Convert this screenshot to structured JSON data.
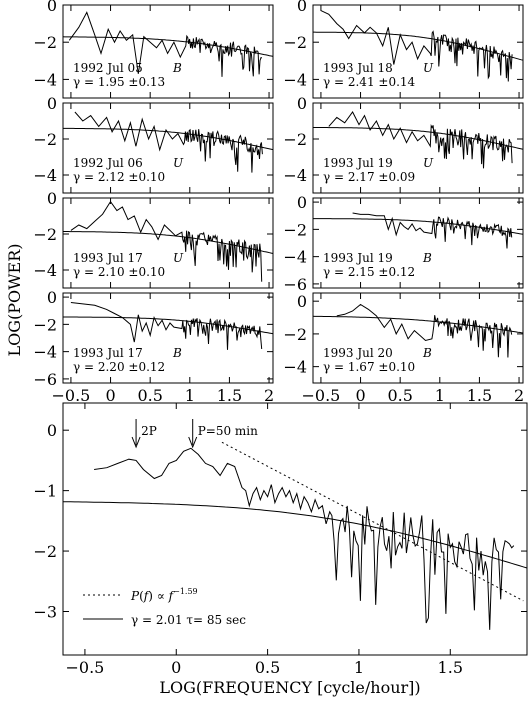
{
  "ylabel": "LOG(POWER)",
  "xlabel": "LOG(FREQUENCY [cycle/hour])",
  "chart_data": [
    {
      "type": "line",
      "id": "p1",
      "line1": "1992 Jul 05",
      "band": "B",
      "gamma": "γ = 1.95 ±0.13",
      "ylim": [
        -5,
        0
      ],
      "yticks": [
        0,
        -2,
        -4
      ],
      "xlim": [
        -0.6,
        2.05
      ],
      "model": {
        "level": -1.7,
        "knee": 1.0,
        "slope": 1.95
      },
      "series": [
        {
          "name": "power",
          "x": [
            -0.52,
            -0.4,
            -0.3,
            -0.2,
            -0.12,
            -0.03,
            0.05,
            0.12,
            0.2,
            0.28,
            0.35,
            0.42,
            0.5,
            0.58,
            0.65,
            0.72,
            0.8,
            0.88,
            0.95
          ],
          "y": [
            -1.9,
            -1.2,
            -0.4,
            -1.6,
            -2.6,
            -1.3,
            -2.0,
            -1.4,
            -1.9,
            -1.6,
            -3.7,
            -1.7,
            -2.0,
            -2.3,
            -1.9,
            -2.6,
            -2.0,
            -2.8,
            -2.2
          ]
        }
      ]
    },
    {
      "type": "line",
      "id": "p2",
      "line1": "1992 Jul 06",
      "band": "U",
      "gamma": "γ = 2.12 ±0.10",
      "ylim": [
        -5,
        0
      ],
      "yticks": [
        0,
        -2,
        -4
      ],
      "xlim": [
        -0.6,
        2.05
      ],
      "model": {
        "level": -1.4,
        "knee": 0.95,
        "slope": 2.12
      },
      "series": [
        {
          "name": "power",
          "x": [
            -0.45,
            -0.35,
            -0.25,
            -0.15,
            -0.05,
            0.02,
            0.1,
            0.18,
            0.25,
            0.32,
            0.4,
            0.48,
            0.55,
            0.62,
            0.7,
            0.78,
            0.85,
            0.92
          ],
          "y": [
            -0.5,
            -1.0,
            -0.7,
            -1.3,
            -0.8,
            -1.6,
            -1.0,
            -2.1,
            -1.1,
            -2.4,
            -0.9,
            -2.0,
            -1.3,
            -2.6,
            -1.5,
            -2.0,
            -1.7,
            -2.3
          ]
        }
      ]
    },
    {
      "type": "line",
      "id": "p3",
      "line1": "1993 Jul 17",
      "band": "U",
      "gamma": "γ = 2.10 ±0.10",
      "ylim": [
        -5,
        0
      ],
      "yticks": [
        0,
        -2,
        -4
      ],
      "xlim": [
        -0.6,
        2.05
      ],
      "model": {
        "level": -1.85,
        "knee": 0.9,
        "slope": 2.1
      },
      "series": [
        {
          "name": "power",
          "x": [
            -0.5,
            -0.4,
            -0.3,
            -0.2,
            -0.1,
            0.0,
            0.08,
            0.15,
            0.22,
            0.3,
            0.38,
            0.45,
            0.52,
            0.6,
            0.68,
            0.75,
            0.82,
            0.9
          ],
          "y": [
            -1.8,
            -1.5,
            -1.7,
            -1.3,
            -0.9,
            -0.2,
            -0.7,
            -0.5,
            -1.2,
            -1.0,
            -1.9,
            -1.2,
            -1.6,
            -2.3,
            -1.5,
            -1.8,
            -2.1,
            -1.9
          ]
        }
      ]
    },
    {
      "type": "line",
      "id": "p4",
      "line1": "1993 Jul 17",
      "band": "B",
      "gamma": "γ = 2.20 ±0.12",
      "ylim": [
        -6.3,
        0.3
      ],
      "yticks": [
        0,
        -2,
        -4,
        -6
      ],
      "xlim": [
        -0.6,
        2.05
      ],
      "model": {
        "level": -1.45,
        "knee": 0.95,
        "slope": 2.2
      },
      "series": [
        {
          "name": "power",
          "x": [
            -0.5,
            -0.35,
            -0.2,
            -0.05,
            0.05,
            0.15,
            0.25,
            0.3,
            0.35,
            0.4,
            0.45,
            0.5,
            0.55,
            0.6,
            0.65,
            0.7,
            0.75,
            0.8,
            0.9
          ],
          "y": [
            -0.4,
            -0.5,
            -0.6,
            -0.9,
            -1.2,
            -1.5,
            -2.0,
            -3.3,
            -1.3,
            -2.5,
            -1.9,
            -2.8,
            -1.5,
            -2.1,
            -1.7,
            -2.4,
            -1.9,
            -2.2,
            -2.3
          ]
        }
      ]
    },
    {
      "type": "line",
      "id": "p5",
      "line1": "1993 Jul 18",
      "band": "U",
      "gamma": "γ = 2.41 ±0.14",
      "ylim": [
        -5,
        0
      ],
      "yticks": [
        0,
        -2,
        -4
      ],
      "xlim": [
        -0.6,
        2.05
      ],
      "model": {
        "level": -1.45,
        "knee": 0.8,
        "slope": 2.41
      },
      "series": [
        {
          "name": "power",
          "x": [
            -0.5,
            -0.4,
            -0.3,
            -0.22,
            -0.15,
            -0.05,
            0.05,
            0.12,
            0.2,
            0.28,
            0.35,
            0.42,
            0.5,
            0.58,
            0.65,
            0.72,
            0.8,
            0.88
          ],
          "y": [
            -0.3,
            -0.5,
            -1.0,
            -1.3,
            -1.8,
            -1.1,
            -1.5,
            -1.2,
            -1.5,
            -2.2,
            -1.2,
            -3.2,
            -1.6,
            -2.4,
            -2.0,
            -2.9,
            -2.2,
            -2.6
          ]
        }
      ]
    },
    {
      "type": "line",
      "id": "p6",
      "line1": "1993 Jul 19",
      "band": "U",
      "gamma": "γ = 2.17 ±0.09",
      "ylim": [
        -5,
        0
      ],
      "yticks": [
        0,
        -2,
        -4
      ],
      "xlim": [
        -0.6,
        2.05
      ],
      "model": {
        "level": -1.35,
        "knee": 0.95,
        "slope": 2.17
      },
      "series": [
        {
          "name": "power",
          "x": [
            -0.4,
            -0.3,
            -0.2,
            -0.1,
            -0.02,
            0.05,
            0.12,
            0.2,
            0.28,
            0.35,
            0.42,
            0.5,
            0.58,
            0.65,
            0.72,
            0.8,
            0.88
          ],
          "y": [
            -1.3,
            -0.8,
            -1.1,
            -0.5,
            -1.2,
            -0.7,
            -1.5,
            -1.0,
            -1.8,
            -1.2,
            -2.0,
            -1.4,
            -2.2,
            -1.6,
            -2.1,
            -1.8,
            -2.4
          ]
        }
      ]
    },
    {
      "type": "line",
      "id": "p7",
      "line1": "1993 Jul 19",
      "band": "B",
      "gamma": "γ = 2.15 ±0.12",
      "ylim": [
        -6.3,
        0.3
      ],
      "yticks": [
        0,
        -2,
        -4,
        -6
      ],
      "xlim": [
        -0.6,
        2.05
      ],
      "model": {
        "level": -1.2,
        "knee": 1.0,
        "slope": 2.15
      },
      "series": [
        {
          "name": "power",
          "x": [
            -0.1,
            0.0,
            0.1,
            0.2,
            0.3,
            0.35,
            0.4,
            0.45,
            0.5,
            0.55,
            0.6,
            0.65,
            0.7,
            0.75,
            0.8,
            0.9
          ],
          "y": [
            -0.8,
            -0.9,
            -0.9,
            -1.0,
            -1.0,
            -2.0,
            -1.2,
            -2.4,
            -1.5,
            -1.8,
            -2.0,
            -1.6,
            -2.1,
            -1.9,
            -2.2,
            -2.3
          ]
        }
      ]
    },
    {
      "type": "line",
      "id": "p8",
      "line1": "1993 Jul 20",
      "band": "B",
      "gamma": "γ = 1.67 ±0.10",
      "ylim": [
        -5,
        0.5
      ],
      "yticks": [
        0,
        -2,
        -4
      ],
      "xlim": [
        -0.6,
        2.05
      ],
      "model": {
        "level": -0.9,
        "knee": 0.85,
        "slope": 1.67
      },
      "series": [
        {
          "name": "power",
          "x": [
            -0.3,
            -0.2,
            -0.1,
            0.0,
            0.1,
            0.2,
            0.3,
            0.38,
            0.45,
            0.52,
            0.6,
            0.68,
            0.75,
            0.82,
            0.9
          ],
          "y": [
            -0.9,
            -0.8,
            -0.6,
            -0.2,
            -0.5,
            -0.9,
            -1.6,
            -1.1,
            -2.0,
            -1.4,
            -2.3,
            -1.8,
            -2.1,
            -2.4,
            -2.3
          ]
        }
      ]
    },
    {
      "type": "line",
      "id": "main",
      "ylim": [
        -3.72,
        0.45
      ],
      "xlim": [
        -0.62,
        1.92
      ],
      "xticks": [
        -0.5,
        0,
        0.5,
        1,
        1.5
      ],
      "yticks": [
        0,
        -1,
        -2,
        -3
      ],
      "model": {
        "level": -1.17,
        "knee": 0.85,
        "slope": 2.01
      },
      "annotations": [
        {
          "text": "2P",
          "x": -0.22
        },
        {
          "text": "P=50 min",
          "x": 0.09
        }
      ],
      "legend": [
        {
          "style": "dotted",
          "text": "P(f) ∝ f^-1.59"
        },
        {
          "style": "solid",
          "text": "γ = 2.01   τ= 85 sec"
        }
      ],
      "powerlaw": {
        "x0": 0.25,
        "y0": -0.2,
        "slope": -1.59,
        "x1": 1.9
      },
      "series": [
        {
          "name": "power",
          "x": [
            -0.45,
            -0.38,
            -0.32,
            -0.26,
            -0.22,
            -0.18,
            -0.12,
            -0.08,
            -0.04,
            0.0,
            0.04,
            0.08,
            0.12,
            0.16,
            0.2,
            0.24,
            0.28,
            0.32,
            0.36,
            0.38,
            0.4,
            0.42,
            0.44,
            0.46,
            0.48,
            0.5,
            0.52,
            0.54,
            0.56,
            0.58,
            0.6,
            0.62,
            0.64,
            0.66,
            0.68,
            0.7,
            0.72,
            0.74,
            0.76,
            0.78,
            0.8,
            0.82,
            0.84
          ],
          "y": [
            -0.65,
            -0.62,
            -0.55,
            -0.48,
            -0.5,
            -0.65,
            -0.8,
            -0.75,
            -0.55,
            -0.5,
            -0.35,
            -0.3,
            -0.4,
            -0.55,
            -0.6,
            -0.75,
            -0.55,
            -0.6,
            -0.95,
            -1.0,
            -1.25,
            -1.05,
            -0.95,
            -1.15,
            -1.0,
            -1.1,
            -0.9,
            -1.2,
            -1.05,
            -0.95,
            -1.1,
            -1.0,
            -1.2,
            -1.05,
            -1.3,
            -1.1,
            -1.2,
            -1.35,
            -1.15,
            -1.3,
            -1.25,
            -1.55,
            -1.35
          ]
        }
      ]
    }
  ]
}
